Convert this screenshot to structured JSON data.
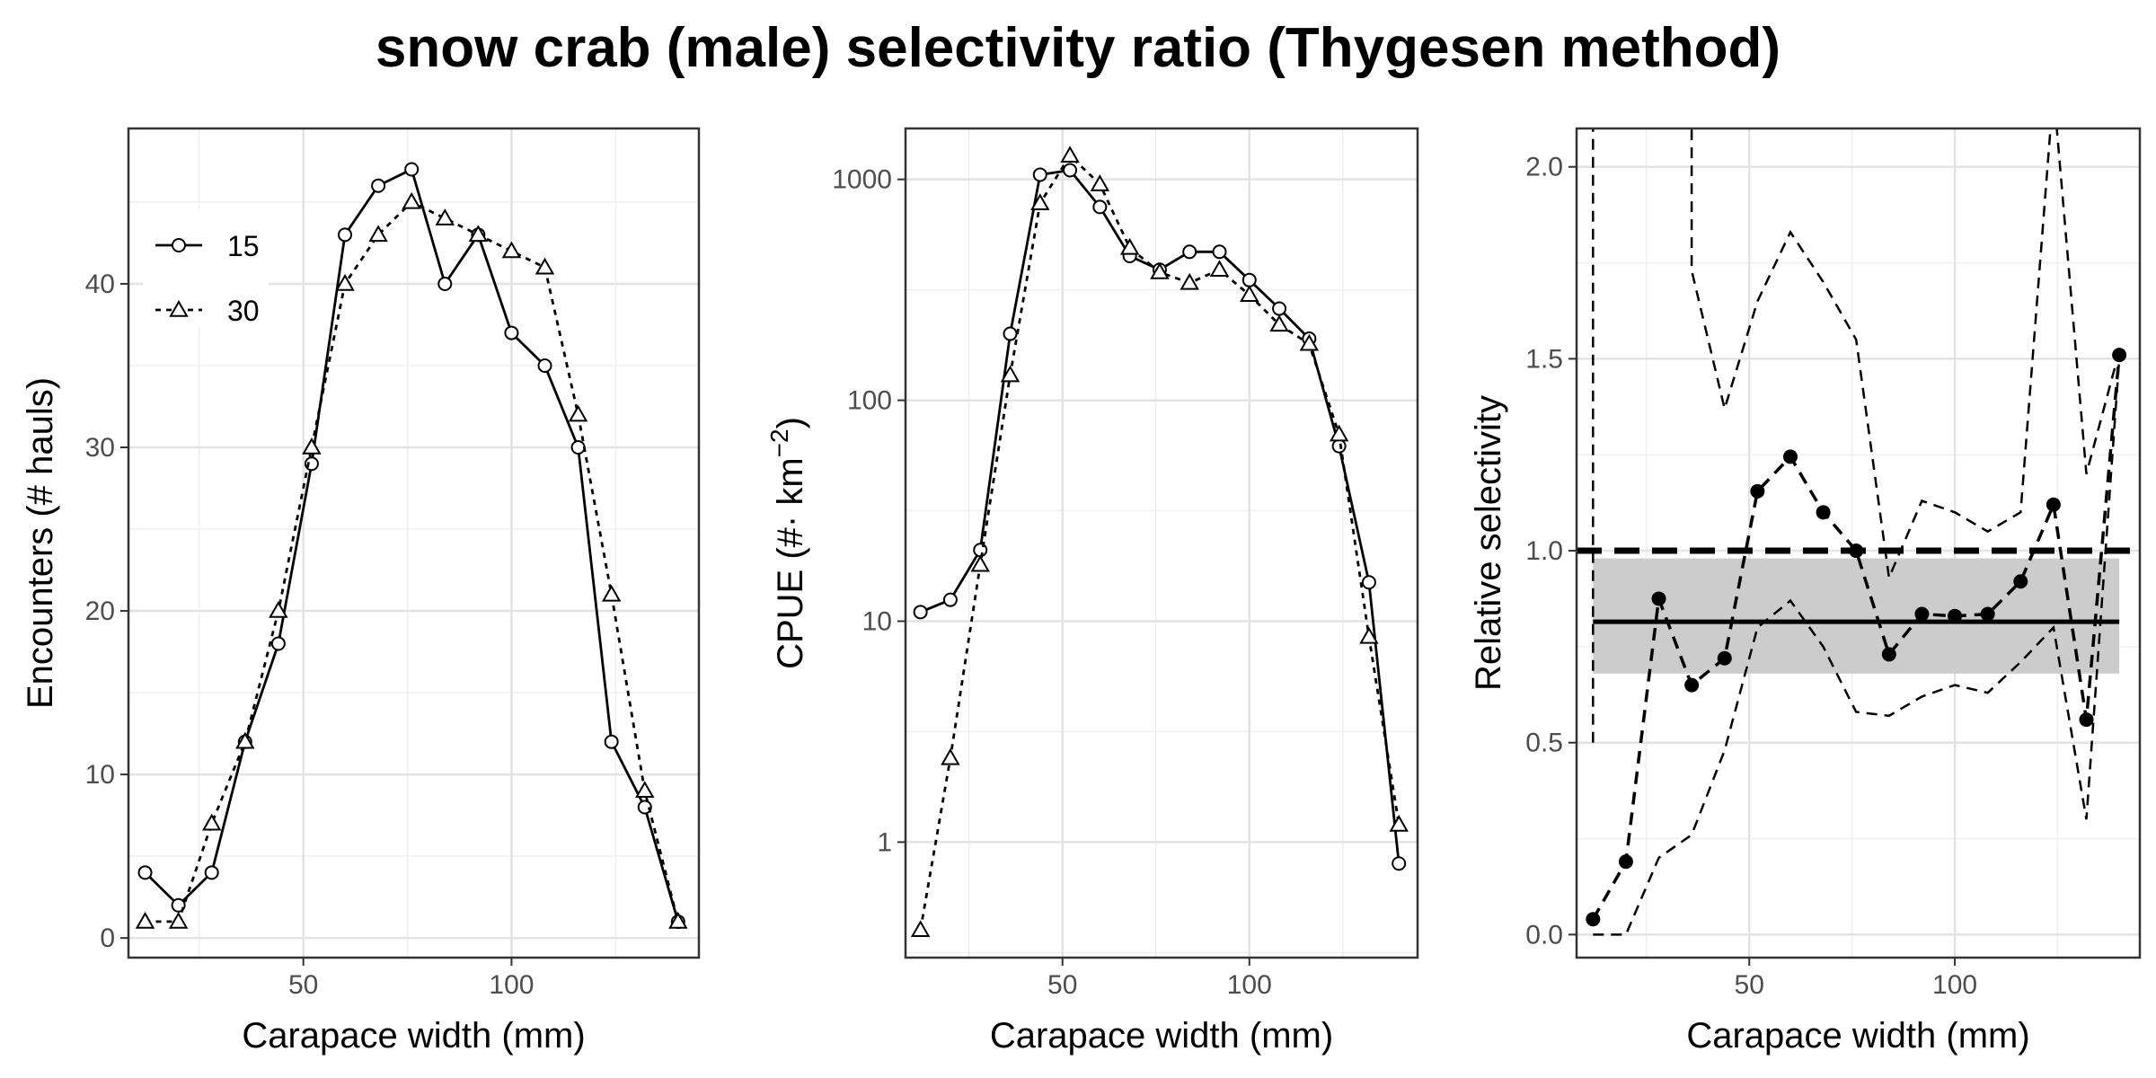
{
  "title": "snow crab (male) selectivity ratio (Thygesen method)",
  "chart_data": [
    {
      "type": "line",
      "panel": "encounters",
      "xlabel": "Carapace width (mm)",
      "ylabel": "Encounters (# hauls)",
      "xlim": [
        8,
        145
      ],
      "ylim": [
        -1.2,
        49.5
      ],
      "xticks": [
        50,
        100
      ],
      "yticks": [
        0,
        10,
        20,
        30,
        40
      ],
      "legend": {
        "placement": "top-left",
        "entries": [
          "15",
          "30"
        ]
      },
      "grid": true,
      "series": [
        {
          "name": "15",
          "line": "solid",
          "marker": "open-circle",
          "x": [
            12,
            20,
            28,
            36,
            44,
            52,
            60,
            68,
            76,
            84,
            92,
            100,
            108,
            116,
            124,
            132,
            140
          ],
          "y": [
            4,
            2,
            4,
            12,
            18,
            29,
            43,
            46,
            47,
            40,
            43,
            37,
            35,
            30,
            12,
            8,
            1
          ]
        },
        {
          "name": "30",
          "line": "dotted",
          "marker": "open-triangle",
          "x": [
            12,
            20,
            28,
            36,
            44,
            52,
            60,
            68,
            76,
            84,
            92,
            100,
            108,
            116,
            124,
            132,
            140
          ],
          "y": [
            1,
            1,
            7,
            12,
            20,
            30,
            40,
            43,
            45,
            44,
            43,
            42,
            41,
            32,
            21,
            9,
            1
          ]
        }
      ]
    },
    {
      "type": "line",
      "panel": "cpue",
      "xlabel": "Carapace width (mm)",
      "ylabel": "CPUE (#· km",
      "ylabel_superscript": "−2",
      "ylabel_suffix": ")",
      "yscale": "log",
      "xlim": [
        8,
        145
      ],
      "ylim": [
        0.3,
        1700
      ],
      "xticks": [
        50,
        100
      ],
      "yticks": [
        1,
        10,
        100,
        1000
      ],
      "ytick_labels": [
        "1",
        "10",
        "100",
        "1000"
      ],
      "grid": true,
      "series": [
        {
          "name": "15",
          "line": "solid",
          "marker": "open-circle",
          "x": [
            12,
            20,
            28,
            36,
            44,
            52,
            60,
            68,
            76,
            84,
            92,
            100,
            108,
            116,
            124,
            132,
            140
          ],
          "y": [
            11,
            12.5,
            21,
            200,
            1050,
            1100,
            750,
            450,
            390,
            470,
            470,
            350,
            260,
            190,
            62,
            15,
            0.8
          ]
        },
        {
          "name": "30",
          "line": "dotted",
          "marker": "open-triangle",
          "x": [
            12,
            20,
            28,
            36,
            44,
            52,
            60,
            68,
            76,
            84,
            92,
            100,
            108,
            116,
            124,
            132,
            140
          ],
          "y": [
            0.4,
            2.4,
            18,
            130,
            780,
            1280,
            950,
            490,
            380,
            340,
            390,
            300,
            220,
            180,
            70,
            8.5,
            1.2
          ]
        }
      ]
    },
    {
      "type": "line",
      "panel": "relative-selectivity",
      "xlabel": "Carapace width (mm)",
      "ylabel": "Relative selectivity",
      "xlim": [
        8,
        145
      ],
      "ylim": [
        -0.06,
        2.1
      ],
      "xticks": [
        50,
        100
      ],
      "yticks": [
        0,
        0.5,
        1,
        1.5,
        2
      ],
      "ytick_labels": [
        "0.0",
        "0.5",
        "1.0",
        "1.5",
        "2.0"
      ],
      "grid": true,
      "reference_line": 1.0,
      "mean_ratio": 0.815,
      "mean_band": [
        0.68,
        0.98
      ],
      "mean_xrange": [
        12,
        140
      ],
      "points": {
        "x": [
          12,
          20,
          28,
          36,
          44,
          52,
          60,
          68,
          76,
          84,
          92,
          100,
          108,
          116,
          124,
          132,
          140
        ],
        "y": [
          0.04,
          0.19,
          0.875,
          0.65,
          0.72,
          1.155,
          1.245,
          1.1,
          1.0,
          0.73,
          0.835,
          0.83,
          0.835,
          0.92,
          1.12,
          0.56,
          1.51
        ]
      },
      "lower_ci": {
        "x": [
          12,
          20,
          28,
          36,
          44,
          52,
          60,
          68,
          76,
          84,
          92,
          100,
          108,
          116,
          124,
          132,
          140
        ],
        "y": [
          0.0,
          0.0,
          0.2,
          0.26,
          0.48,
          0.8,
          0.87,
          0.75,
          0.58,
          0.57,
          0.62,
          0.65,
          0.63,
          0.71,
          0.8,
          0.3,
          1.5
        ]
      },
      "upper_ci": {
        "x": [
          12,
          12,
          20,
          28,
          36,
          36,
          44,
          52,
          60,
          68,
          76,
          84,
          92,
          100,
          108,
          116,
          124,
          132,
          140
        ],
        "y": [
          0.5,
          2.2,
          2.2,
          2.2,
          2.2,
          1.73,
          1.37,
          1.65,
          1.83,
          1.7,
          1.55,
          0.93,
          1.13,
          1.1,
          1.05,
          1.1,
          2.2,
          1.2,
          1.52
        ]
      }
    }
  ]
}
